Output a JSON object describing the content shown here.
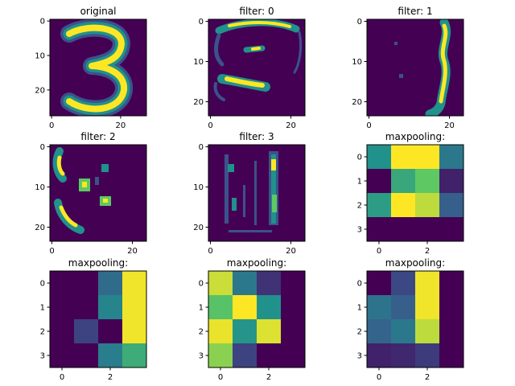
{
  "chart_data": [
    {
      "type": "heatmap",
      "title": "original",
      "shape": [
        28,
        28
      ],
      "xlim": [
        -0.5,
        27.5
      ],
      "ylim": [
        27.5,
        -0.5
      ],
      "xticks": [
        0,
        20
      ],
      "yticks": [
        0,
        10,
        20
      ],
      "grid": "none",
      "image": "digit-3-grayscale-heatmap",
      "content": "handwritten digit 3"
    },
    {
      "type": "heatmap",
      "title": "filter: 0",
      "shape": [
        24,
        24
      ],
      "xlim": [
        -0.5,
        23.5
      ],
      "ylim": [
        23.5,
        -0.5
      ],
      "xticks": [
        0,
        20
      ],
      "yticks": [
        0,
        10,
        20
      ],
      "grid": "none",
      "image": "conv-filter-0-response",
      "content": "horizontal edges: top arc near row 1, small blob near row 7, bottom stroke rows 16-18"
    },
    {
      "type": "heatmap",
      "title": "filter: 1",
      "shape": [
        24,
        24
      ],
      "xlim": [
        -0.5,
        23.5
      ],
      "ylim": [
        23.5,
        -0.5
      ],
      "xticks": [
        0,
        20
      ],
      "yticks": [
        0,
        10,
        20
      ],
      "grid": "none",
      "image": "conv-filter-1-response",
      "content": "vertical right edge near column 20"
    },
    {
      "type": "heatmap",
      "title": "filter: 2",
      "shape": [
        24,
        24
      ],
      "xlim": [
        -0.5,
        23.5
      ],
      "ylim": [
        23.5,
        -0.5
      ],
      "xticks": [
        0,
        20
      ],
      "yticks": [
        0,
        10,
        20
      ],
      "grid": "none",
      "image": "conv-filter-2-response",
      "content": "left edge arcs and interior blobs"
    },
    {
      "type": "heatmap",
      "title": "filter: 3",
      "shape": [
        24,
        24
      ],
      "xlim": [
        -0.5,
        23.5
      ],
      "ylim": [
        23.5,
        -0.5
      ],
      "xticks": [
        0,
        20
      ],
      "yticks": [
        0,
        10,
        20
      ],
      "grid": "none",
      "image": "conv-filter-3-response",
      "content": "thin vertical edges near columns 3 and 16"
    },
    {
      "type": "heatmap",
      "title": "maxpooling:",
      "shape": [
        4,
        4
      ],
      "xlim": [
        -0.5,
        3.5
      ],
      "ylim": [
        3.5,
        -0.5
      ],
      "xticks": [
        0,
        2
      ],
      "yticks": [
        0,
        1,
        2,
        3
      ],
      "grid": "none",
      "values": [
        [
          0.5,
          1.0,
          1.0,
          0.4
        ],
        [
          0.0,
          0.6,
          0.75,
          0.1
        ],
        [
          0.55,
          1.0,
          0.9,
          0.3
        ],
        [
          0.0,
          0.0,
          0.0,
          0.0
        ]
      ]
    },
    {
      "type": "heatmap",
      "title": "maxpooling:",
      "shape": [
        4,
        4
      ],
      "xlim": [
        -0.5,
        3.5
      ],
      "ylim": [
        3.5,
        -0.5
      ],
      "xticks": [
        0,
        2
      ],
      "yticks": [
        0,
        1,
        2,
        3
      ],
      "grid": "none",
      "values": [
        [
          0.0,
          0.0,
          0.35,
          0.98
        ],
        [
          0.0,
          0.0,
          0.45,
          0.98
        ],
        [
          0.0,
          0.2,
          0.0,
          0.98
        ],
        [
          0.0,
          0.0,
          0.42,
          0.62
        ]
      ]
    },
    {
      "type": "heatmap",
      "title": "maxpooling:",
      "shape": [
        4,
        4
      ],
      "xlim": [
        -0.5,
        3.5
      ],
      "ylim": [
        3.5,
        -0.5
      ],
      "xticks": [
        0,
        2
      ],
      "yticks": [
        0,
        1,
        2,
        3
      ],
      "grid": "none",
      "values": [
        [
          0.92,
          0.4,
          0.15,
          0.0
        ],
        [
          0.72,
          1.0,
          0.5,
          0.0
        ],
        [
          0.97,
          0.52,
          0.95,
          0.0
        ],
        [
          0.82,
          0.2,
          0.0,
          0.0
        ]
      ]
    },
    {
      "type": "heatmap",
      "title": "maxpooling:",
      "shape": [
        4,
        4
      ],
      "xlim": [
        -0.5,
        3.5
      ],
      "ylim": [
        3.5,
        -0.5
      ],
      "xticks": [
        0,
        2
      ],
      "yticks": [
        0,
        1,
        2,
        3
      ],
      "grid": "none",
      "values": [
        [
          0.0,
          0.22,
          0.98,
          0.0
        ],
        [
          0.38,
          0.3,
          0.98,
          0.0
        ],
        [
          0.32,
          0.4,
          0.9,
          0.0
        ],
        [
          0.1,
          0.12,
          0.18,
          0.0
        ]
      ]
    }
  ],
  "colormap": [
    "#440154",
    "#3b528b",
    "#21918c",
    "#5ec962",
    "#fde725"
  ]
}
